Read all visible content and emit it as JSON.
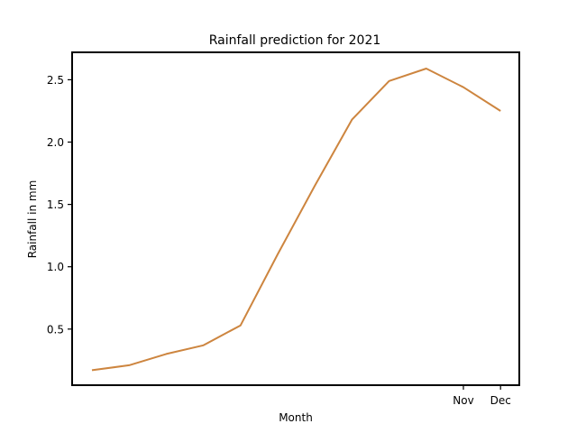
{
  "chart_data": {
    "type": "line",
    "title": "Rainfall prediction for 2021",
    "xlabel": "Month",
    "ylabel": "Rainfall in mm",
    "x_tick_labels": [
      "Nov",
      "Dec"
    ],
    "y_ticks": [
      0.5,
      1.0,
      1.5,
      2.0,
      2.5
    ],
    "y_tick_labels": [
      "0.5",
      "1.0",
      "1.5",
      "2.0",
      "2.5"
    ],
    "ylim": [
      0.05,
      2.72
    ],
    "grid": false,
    "series": [
      {
        "color": "#cd853f",
        "values": [
          0.17,
          0.21,
          0.3,
          0.37,
          0.53,
          1.1,
          1.65,
          2.18,
          2.49,
          2.59,
          2.44,
          2.25
        ]
      }
    ]
  }
}
